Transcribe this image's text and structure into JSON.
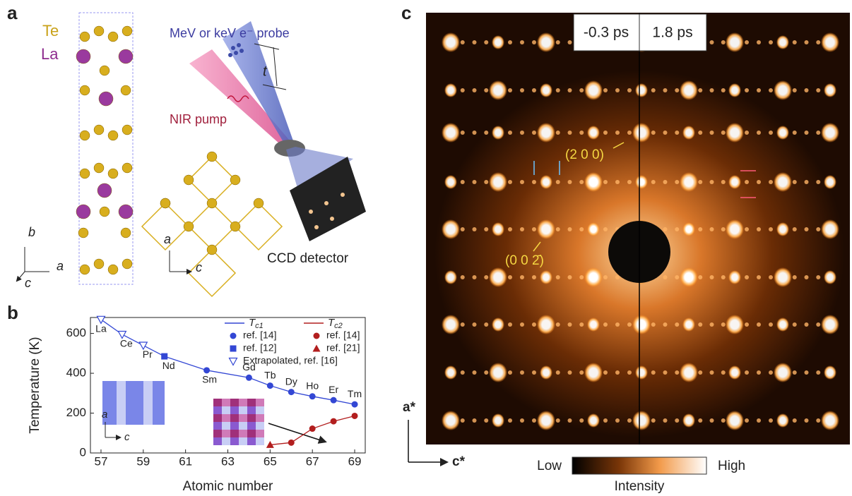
{
  "panel_a": {
    "label": "a",
    "species": [
      "Te",
      "La"
    ],
    "probe": "MeV or keV e⁻ probe",
    "delay": "t",
    "pump": "NIR pump",
    "detector": "CCD detector",
    "axes_3d": [
      "b",
      "a",
      "c"
    ],
    "axes_2d": [
      "a",
      "c"
    ]
  },
  "chart_data": {
    "type": "line",
    "label": "b",
    "xlabel": "Atomic number",
    "ylabel": "Temperature (K)",
    "xlim": [
      56.5,
      69.5
    ],
    "xticks": [
      57,
      59,
      61,
      63,
      65,
      67,
      69
    ],
    "ylim": [
      0,
      680
    ],
    "yticks": [
      0,
      200,
      400,
      600
    ],
    "series": [
      {
        "name": "Tc1",
        "color": "#3347d4",
        "x": [
          57,
          58,
          59,
          60,
          62,
          64,
          65,
          66,
          67,
          68,
          69
        ],
        "values": [
          670,
          595,
          540,
          485,
          415,
          378,
          338,
          306,
          284,
          265,
          244
        ],
        "markers": [
          "triangle-open",
          "triangle-open",
          "triangle-open",
          "square",
          "circle",
          "circle",
          "circle",
          "circle",
          "circle",
          "circle",
          "circle"
        ],
        "point_labels": [
          "La",
          "Ce",
          "Pr",
          "Nd",
          "Sm",
          "Gd",
          "Tb",
          "Dy",
          "Ho",
          "Er",
          "Tm"
        ]
      },
      {
        "name": "Tc2",
        "color": "#b21e1e",
        "x": [
          65,
          66,
          67,
          68,
          69
        ],
        "values": [
          41,
          52,
          122,
          159,
          186
        ],
        "markers": [
          "triangle",
          "circle",
          "circle",
          "circle",
          "circle"
        ]
      }
    ],
    "legend_markers": [
      {
        "label": "ref. [14]",
        "marker": "circle",
        "color": "#3347d4"
      },
      {
        "label": "ref. [12]",
        "marker": "square",
        "color": "#3347d4"
      },
      {
        "label": "Extrapolated, ref. [16]",
        "marker": "triangle-open",
        "color": "#3347d4"
      },
      {
        "label": "ref. [14]",
        "marker": "circle",
        "color": "#b21e1e"
      },
      {
        "label": "ref. [21]",
        "marker": "triangle",
        "color": "#b21e1e"
      }
    ],
    "inset_axes": [
      "a",
      "c"
    ]
  },
  "panel_c": {
    "label": "c",
    "time_left": "-0.3 ps",
    "time_right": "1.8 ps",
    "peak_1": "(2 0 0)",
    "peak_2": "(0 0 2̄)",
    "axis_vertical": "a*",
    "axis_horizontal": "c*",
    "scale_low": "Low",
    "scale_high": "High",
    "scale_title": "Intensity"
  }
}
